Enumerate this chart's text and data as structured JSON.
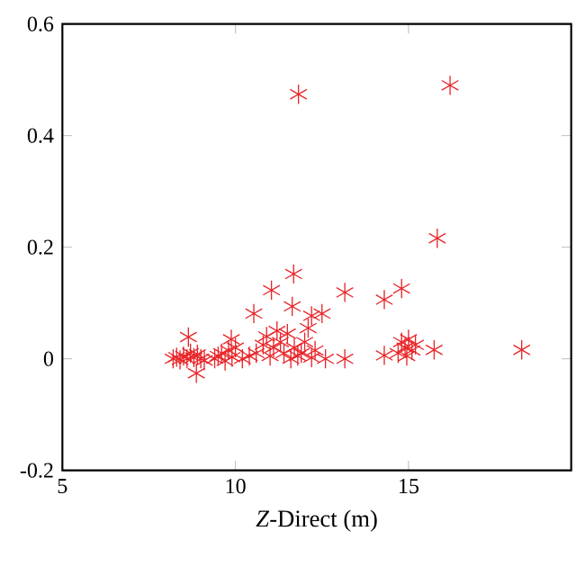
{
  "chart_data": {
    "type": "scatter",
    "xlabel": "*Z*-Direct (m)",
    "marker": "cross",
    "grid": false,
    "xlim": [
      5,
      19.7
    ],
    "ylim": [
      -0.2,
      0.6
    ],
    "xticks": [
      5,
      10,
      15
    ],
    "yticks": [
      -0.2,
      0,
      0.2,
      0.4,
      0.6
    ],
    "series": [
      {
        "color": "#e8262a",
        "x": [
          11.82,
          16.2,
          15.83,
          11.68,
          11.04,
          13.16,
          14.3,
          14.8,
          11.64,
          10.53,
          12.2,
          12.5,
          8.64,
          9.88,
          8.87,
          18.27,
          15.74,
          13.16,
          14.3,
          8.2,
          8.3,
          8.4,
          8.5,
          8.6,
          8.7,
          8.8,
          8.9,
          9.0,
          9.1,
          9.4,
          9.5,
          9.6,
          9.7,
          9.8,
          9.9,
          10.0,
          10.2,
          10.4,
          10.6,
          10.8,
          10.9,
          11.0,
          11.1,
          11.2,
          11.3,
          11.4,
          11.5,
          11.6,
          11.7,
          11.8,
          11.9,
          12.0,
          12.1,
          12.2,
          12.3,
          12.6,
          14.7,
          14.8,
          14.9,
          15.0,
          15.1,
          15.2,
          14.95
        ],
        "values": [
          0.474,
          0.49,
          0.216,
          0.152,
          0.123,
          0.119,
          0.106,
          0.126,
          0.094,
          0.081,
          0.077,
          0.081,
          0.039,
          0.035,
          -0.026,
          0.016,
          0.016,
          0.0,
          0.006,
          0.0,
          0.003,
          -0.002,
          0.005,
          0.0,
          0.01,
          0.002,
          0.008,
          0.0,
          -0.003,
          0.0,
          0.005,
          0.01,
          -0.004,
          0.015,
          0.003,
          0.02,
          0.0,
          0.005,
          0.01,
          0.025,
          0.04,
          0.005,
          0.02,
          0.05,
          0.03,
          0.01,
          0.045,
          0.0,
          0.02,
          0.005,
          0.01,
          0.03,
          0.055,
          0.002,
          0.015,
          0.0,
          0.01,
          0.03,
          0.02,
          0.035,
          0.015,
          0.025,
          0.005
        ]
      }
    ]
  }
}
